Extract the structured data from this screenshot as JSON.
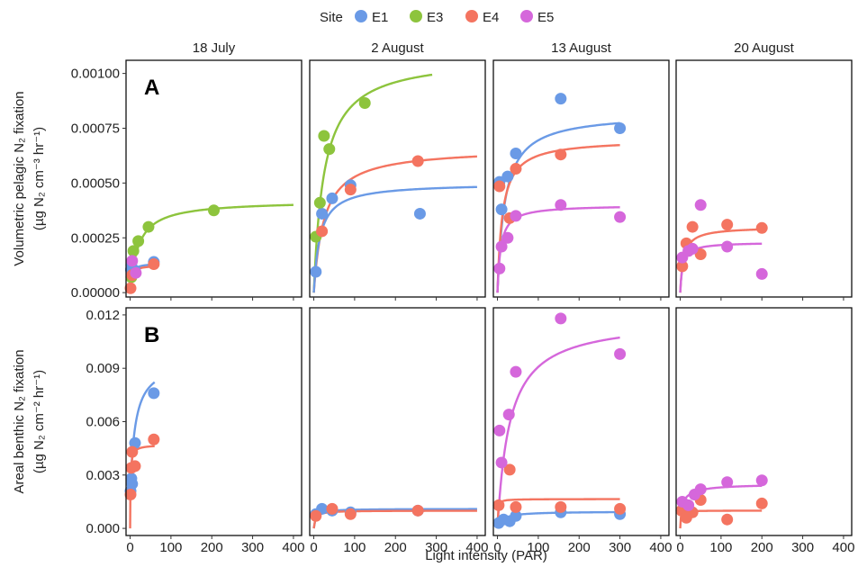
{
  "chart_data": {
    "type": "scatter",
    "legend": {
      "title": "Site",
      "placement": "top"
    },
    "x_axis": {
      "label": "Light intensity (PAR)",
      "range": [
        -10,
        420
      ],
      "ticks": [
        0,
        100,
        200,
        300,
        400
      ]
    },
    "columns": [
      "18 July",
      "2 August",
      "13 August",
      "20 August"
    ],
    "series": [
      {
        "name": "E1",
        "color": "#6a9ae6"
      },
      {
        "name": "E3",
        "color": "#8dc43d"
      },
      {
        "name": "E4",
        "color": "#f47460"
      },
      {
        "name": "E5",
        "color": "#d567db"
      }
    ],
    "rows": [
      {
        "tag": "A",
        "ylabel": "Volumetric pelagic N₂ fixation",
        "yunit": "(µg N₂ cm⁻³ hr⁻¹)",
        "ylim": [
          -2e-05,
          0.00106
        ],
        "yticks": [
          0,
          0.00025,
          0.0005,
          0.00075,
          0.001
        ],
        "yticklabels": [
          "0.00000",
          "0.00025",
          "0.00050",
          "0.00075",
          "0.00100"
        ],
        "panels": [
          {
            "points": [
              {
                "site": "E1",
                "x": 2,
                "y": 0.000105
              },
              {
                "site": "E1",
                "x": 3,
                "y": 0.000125
              },
              {
                "site": "E1",
                "x": 12,
                "y": 0.0001
              },
              {
                "site": "E1",
                "x": 58,
                "y": 0.00014
              },
              {
                "site": "E3",
                "x": 3,
                "y": 7e-05
              },
              {
                "site": "E3",
                "x": 8,
                "y": 0.00019
              },
              {
                "site": "E3",
                "x": 20,
                "y": 0.000235
              },
              {
                "site": "E3",
                "x": 45,
                "y": 0.0003
              },
              {
                "site": "E3",
                "x": 205,
                "y": 0.000375
              },
              {
                "site": "E4",
                "x": 1,
                "y": 2e-05
              },
              {
                "site": "E4",
                "x": 5,
                "y": 8e-05
              },
              {
                "site": "E4",
                "x": 58,
                "y": 0.00013
              },
              {
                "site": "E5",
                "x": 5,
                "y": 0.000145
              },
              {
                "site": "E5",
                "x": 14,
                "y": 9e-05
              }
            ],
            "fits": [
              {
                "site": "E3",
                "pmax": 0.00042,
                "k": 20,
                "y0": 0,
                "xmax": 400
              },
              {
                "site": "E1",
                "pmax": 0.000135,
                "k": 3,
                "y0": 0,
                "xmax": 60
              },
              {
                "site": "E4",
                "pmax": 0.000125,
                "k": 3,
                "y0": 0,
                "xmax": 60
              }
            ]
          },
          {
            "points": [
              {
                "site": "E1",
                "x": 5,
                "y": 9.5e-05
              },
              {
                "site": "E1",
                "x": 20,
                "y": 0.00036
              },
              {
                "site": "E1",
                "x": 45,
                "y": 0.00043
              },
              {
                "site": "E1",
                "x": 90,
                "y": 0.00049
              },
              {
                "site": "E1",
                "x": 260,
                "y": 0.00036
              },
              {
                "site": "E3",
                "x": 5,
                "y": 0.000255
              },
              {
                "site": "E3",
                "x": 15,
                "y": 0.00041
              },
              {
                "site": "E3",
                "x": 25,
                "y": 0.000715
              },
              {
                "site": "E3",
                "x": 38,
                "y": 0.000655
              },
              {
                "site": "E3",
                "x": 125,
                "y": 0.000865
              },
              {
                "site": "E4",
                "x": 20,
                "y": 0.00028
              },
              {
                "site": "E4",
                "x": 90,
                "y": 0.00047
              },
              {
                "site": "E4",
                "x": 255,
                "y": 0.0006
              }
            ],
            "fits": [
              {
                "site": "E3",
                "pmax": 0.00108,
                "k": 25,
                "y0": 0,
                "xmax": 290
              },
              {
                "site": "E4",
                "pmax": 0.00066,
                "k": 25,
                "y0": 0,
                "xmax": 400
              },
              {
                "site": "E1",
                "pmax": 0.0005,
                "k": 15,
                "y0": 0,
                "xmax": 400
              }
            ]
          },
          {
            "points": [
              {
                "site": "E1",
                "x": 5,
                "y": 0.000505
              },
              {
                "site": "E1",
                "x": 10,
                "y": 0.00038
              },
              {
                "site": "E1",
                "x": 25,
                "y": 0.00053
              },
              {
                "site": "E1",
                "x": 45,
                "y": 0.000635
              },
              {
                "site": "E1",
                "x": 155,
                "y": 0.000885
              },
              {
                "site": "E1",
                "x": 300,
                "y": 0.00075
              },
              {
                "site": "E4",
                "x": 5,
                "y": 0.000485
              },
              {
                "site": "E4",
                "x": 30,
                "y": 0.00034
              },
              {
                "site": "E4",
                "x": 45,
                "y": 0.000565
              },
              {
                "site": "E4",
                "x": 155,
                "y": 0.00063
              },
              {
                "site": "E5",
                "x": 5,
                "y": 0.00011
              },
              {
                "site": "E5",
                "x": 10,
                "y": 0.00021
              },
              {
                "site": "E5",
                "x": 25,
                "y": 0.00025
              },
              {
                "site": "E5",
                "x": 45,
                "y": 0.00035
              },
              {
                "site": "E5",
                "x": 155,
                "y": 0.0004
              },
              {
                "site": "E5",
                "x": 300,
                "y": 0.000345
              }
            ],
            "fits": [
              {
                "site": "E1",
                "pmax": 0.00082,
                "k": 18,
                "y0": 0,
                "xmax": 300
              },
              {
                "site": "E4",
                "pmax": 0.0007,
                "k": 12,
                "y0": 0,
                "xmax": 300
              },
              {
                "site": "E5",
                "pmax": 0.0004,
                "k": 8,
                "y0": 0,
                "xmax": 300
              }
            ]
          },
          {
            "points": [
              {
                "site": "E4",
                "x": 5,
                "y": 0.00012
              },
              {
                "site": "E4",
                "x": 15,
                "y": 0.000225
              },
              {
                "site": "E4",
                "x": 30,
                "y": 0.0003
              },
              {
                "site": "E4",
                "x": 50,
                "y": 0.000175
              },
              {
                "site": "E4",
                "x": 115,
                "y": 0.00031
              },
              {
                "site": "E4",
                "x": 200,
                "y": 0.000295
              },
              {
                "site": "E5",
                "x": 5,
                "y": 0.00016
              },
              {
                "site": "E5",
                "x": 20,
                "y": 0.00019
              },
              {
                "site": "E5",
                "x": 30,
                "y": 0.0002
              },
              {
                "site": "E5",
                "x": 50,
                "y": 0.0004
              },
              {
                "site": "E5",
                "x": 115,
                "y": 0.00021
              },
              {
                "site": "E5",
                "x": 200,
                "y": 8.5e-05
              }
            ],
            "fits": [
              {
                "site": "E4",
                "pmax": 0.0003,
                "k": 8,
                "y0": 0,
                "xmax": 200
              },
              {
                "site": "E5",
                "pmax": 0.00023,
                "k": 6,
                "y0": 0,
                "xmax": 200
              }
            ]
          }
        ]
      },
      {
        "tag": "B",
        "ylabel": "Areal benthic N₂ fixation",
        "yunit": "(µg N₂ cm⁻² hr⁻¹)",
        "ylim": [
          -0.0004,
          0.0124
        ],
        "yticks": [
          0,
          0.003,
          0.006,
          0.009,
          0.012
        ],
        "yticklabels": [
          "0.000",
          "0.003",
          "0.006",
          "0.009",
          "0.012"
        ],
        "panels": [
          {
            "points": [
              {
                "site": "E1",
                "x": 1,
                "y": 0.0021
              },
              {
                "site": "E1",
                "x": 3,
                "y": 0.0028
              },
              {
                "site": "E1",
                "x": 5,
                "y": 0.0025
              },
              {
                "site": "E1",
                "x": 12,
                "y": 0.0048
              },
              {
                "site": "E1",
                "x": 58,
                "y": 0.0076
              },
              {
                "site": "E4",
                "x": 1,
                "y": 0.0019
              },
              {
                "site": "E4",
                "x": 3,
                "y": 0.0034
              },
              {
                "site": "E4",
                "x": 5,
                "y": 0.0043
              },
              {
                "site": "E4",
                "x": 12,
                "y": 0.0035
              },
              {
                "site": "E4",
                "x": 58,
                "y": 0.005
              }
            ],
            "fits": [
              {
                "site": "E1",
                "pmax": 0.0095,
                "k": 12,
                "y0": 0.0018,
                "xmax": 60
              },
              {
                "site": "E4",
                "pmax": 0.0047,
                "k": 1,
                "y0": 0,
                "xmax": 60
              }
            ]
          },
          {
            "points": [
              {
                "site": "E1",
                "x": 5,
                "y": 0.0008
              },
              {
                "site": "E1",
                "x": 20,
                "y": 0.0011
              },
              {
                "site": "E1",
                "x": 45,
                "y": 0.001
              },
              {
                "site": "E1",
                "x": 90,
                "y": 0.0009
              },
              {
                "site": "E1",
                "x": 255,
                "y": 0.001
              },
              {
                "site": "E4",
                "x": 5,
                "y": 0.0007
              },
              {
                "site": "E4",
                "x": 45,
                "y": 0.0011
              },
              {
                "site": "E4",
                "x": 90,
                "y": 0.0008
              },
              {
                "site": "E4",
                "x": 255,
                "y": 0.001
              }
            ],
            "fits": [
              {
                "site": "E1",
                "pmax": 0.0011,
                "k": 5,
                "y0": 0,
                "xmax": 400
              },
              {
                "site": "E4",
                "pmax": 0.001,
                "k": 4,
                "y0": 0,
                "xmax": 400
              }
            ]
          },
          {
            "points": [
              {
                "site": "E1",
                "x": 3,
                "y": 0.0003
              },
              {
                "site": "E1",
                "x": 15,
                "y": 0.0005
              },
              {
                "site": "E1",
                "x": 30,
                "y": 0.0004
              },
              {
                "site": "E1",
                "x": 45,
                "y": 0.0007
              },
              {
                "site": "E1",
                "x": 155,
                "y": 0.0009
              },
              {
                "site": "E1",
                "x": 300,
                "y": 0.0008
              },
              {
                "site": "E4",
                "x": 3,
                "y": 0.0013
              },
              {
                "site": "E4",
                "x": 30,
                "y": 0.0033
              },
              {
                "site": "E4",
                "x": 45,
                "y": 0.0012
              },
              {
                "site": "E4",
                "x": 155,
                "y": 0.0012
              },
              {
                "site": "E4",
                "x": 300,
                "y": 0.0011
              },
              {
                "site": "E5",
                "x": 5,
                "y": 0.0055
              },
              {
                "site": "E5",
                "x": 10,
                "y": 0.0037
              },
              {
                "site": "E5",
                "x": 28,
                "y": 0.0064
              },
              {
                "site": "E5",
                "x": 45,
                "y": 0.0088
              },
              {
                "site": "E5",
                "x": 155,
                "y": 0.0118
              },
              {
                "site": "E5",
                "x": 300,
                "y": 0.0098
              }
            ],
            "fits": [
              {
                "site": "E5",
                "pmax": 0.0118,
                "k": 30,
                "y0": 0,
                "xmax": 300
              },
              {
                "site": "E4",
                "pmax": 0.00165,
                "k": 1,
                "y0": 0,
                "xmax": 300
              },
              {
                "site": "E1",
                "pmax": 0.00095,
                "k": 12,
                "y0": 0,
                "xmax": 300
              }
            ]
          },
          {
            "points": [
              {
                "site": "E4",
                "x": 3,
                "y": 0.001
              },
              {
                "site": "E4",
                "x": 15,
                "y": 0.0006
              },
              {
                "site": "E4",
                "x": 30,
                "y": 0.0009
              },
              {
                "site": "E4",
                "x": 50,
                "y": 0.0016
              },
              {
                "site": "E4",
                "x": 115,
                "y": 0.0005
              },
              {
                "site": "E4",
                "x": 200,
                "y": 0.0014
              },
              {
                "site": "E5",
                "x": 5,
                "y": 0.0015
              },
              {
                "site": "E5",
                "x": 20,
                "y": 0.0013
              },
              {
                "site": "E5",
                "x": 35,
                "y": 0.0019
              },
              {
                "site": "E5",
                "x": 50,
                "y": 0.0022
              },
              {
                "site": "E5",
                "x": 115,
                "y": 0.0026
              },
              {
                "site": "E5",
                "x": 200,
                "y": 0.0027
              }
            ],
            "fits": [
              {
                "site": "E5",
                "pmax": 0.0025,
                "k": 15,
                "y0": 0.001,
                "xmax": 200
              },
              {
                "site": "E4",
                "pmax": 0.001,
                "k": 1,
                "y0": 0,
                "xmax": 200
              }
            ]
          }
        ]
      }
    ]
  }
}
